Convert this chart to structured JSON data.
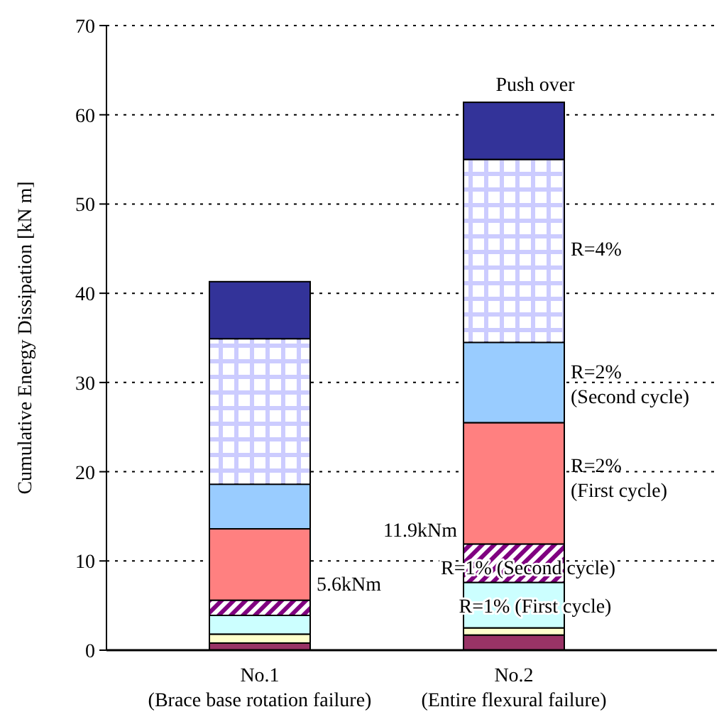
{
  "chart_data": {
    "type": "bar",
    "stacked": true,
    "ylabel": "Cumulative Energy Dissipation [kN m]",
    "categories": [
      "No.1\n(Brace base rotation failure)",
      "No.2\n(Entire flexural failure)"
    ],
    "series": [
      {
        "color": "#993366",
        "values": [
          0.8,
          1.7
        ]
      },
      {
        "color": "#ffffcc",
        "values": [
          1.0,
          0.8
        ]
      },
      {
        "color": "#ccffff",
        "values": [
          2.1,
          5.1
        ]
      },
      {
        "color": "#800080",
        "values": [
          1.7,
          4.3
        ]
      },
      {
        "color": "#ff8080",
        "values": [
          8.0,
          13.6
        ]
      },
      {
        "color": "#99ccff",
        "values": [
          5.0,
          9.0
        ]
      },
      {
        "color": "#ccccff",
        "values": [
          16.3,
          20.5
        ]
      },
      {
        "color": "#333399",
        "values": [
          6.4,
          6.4
        ]
      }
    ],
    "ylim": [
      0,
      70
    ],
    "yticks": [
      0,
      10,
      20,
      30,
      40,
      50,
      60,
      70
    ],
    "grid": "y",
    "annotations": [
      "Push over",
      "R=4%",
      "R=2%\n(Second cycle)",
      "R=2%\n(First cycle)",
      "R=1% (Second cycle)",
      "R=1% (First cycle)",
      "11.9kNm",
      "5.6kNm"
    ]
  }
}
